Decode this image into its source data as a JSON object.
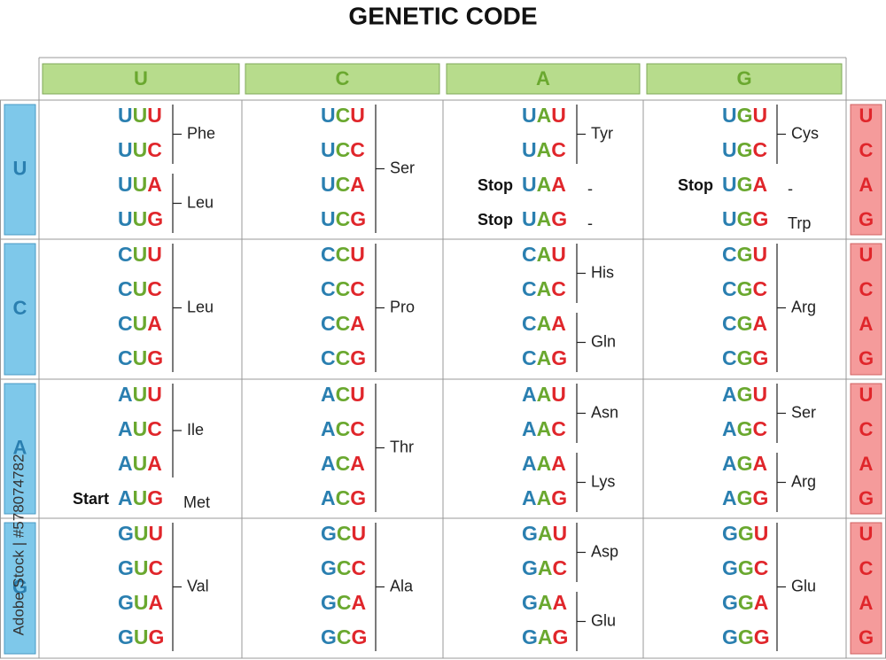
{
  "title": "GENETIC CODE",
  "header": {
    "columns": [
      "U",
      "C",
      "A",
      "G"
    ]
  },
  "watermark": "Adobe Stock | #578074782",
  "rows": [
    {
      "label": "U",
      "third": [
        "U",
        "C",
        "A",
        "G"
      ],
      "cells": [
        {
          "groups": [
            {
              "aa": "Phe",
              "codons": [
                "UUU",
                "UUC"
              ]
            },
            {
              "aa": "Leu",
              "codons": [
                "UUA",
                "UUG"
              ]
            }
          ]
        },
        {
          "groups": [
            {
              "aa": "Ser",
              "codons": [
                "UCU",
                "UCC",
                "UCA",
                "UCG"
              ]
            }
          ]
        },
        {
          "groups": [
            {
              "aa": "Tyr",
              "codons": [
                "UAU",
                "UAC"
              ]
            },
            {
              "aa": "-",
              "note": "Stop",
              "codons": [
                "UAA"
              ]
            },
            {
              "aa": "-",
              "note": "Stop",
              "codons": [
                "UAG"
              ]
            }
          ]
        },
        {
          "groups": [
            {
              "aa": "Cys",
              "codons": [
                "UGU",
                "UGC"
              ]
            },
            {
              "aa": "-",
              "note": "Stop",
              "codons": [
                "UGA"
              ]
            },
            {
              "aa": "Trp",
              "codons": [
                "UGG"
              ]
            }
          ]
        }
      ]
    },
    {
      "label": "C",
      "third": [
        "U",
        "C",
        "A",
        "G"
      ],
      "cells": [
        {
          "groups": [
            {
              "aa": "Leu",
              "codons": [
                "CUU",
                "CUC",
                "CUA",
                "CUG"
              ]
            }
          ]
        },
        {
          "groups": [
            {
              "aa": "Pro",
              "codons": [
                "CCU",
                "CCC",
                "CCA",
                "CCG"
              ]
            }
          ]
        },
        {
          "groups": [
            {
              "aa": "His",
              "codons": [
                "CAU",
                "CAC"
              ]
            },
            {
              "aa": "Gln",
              "codons": [
                "CAA",
                "CAG"
              ]
            }
          ]
        },
        {
          "groups": [
            {
              "aa": "Arg",
              "codons": [
                "CGU",
                "CGC",
                "CGA",
                "CGG"
              ]
            }
          ]
        }
      ]
    },
    {
      "label": "A",
      "third": [
        "U",
        "C",
        "A",
        "G"
      ],
      "cells": [
        {
          "groups": [
            {
              "aa": "Ile",
              "codons": [
                "AUU",
                "AUC",
                "AUA"
              ]
            },
            {
              "aa": "Met",
              "note": "Start",
              "codons": [
                "AUG"
              ]
            }
          ]
        },
        {
          "groups": [
            {
              "aa": "Thr",
              "codons": [
                "ACU",
                "ACC",
                "ACA",
                "ACG"
              ]
            }
          ]
        },
        {
          "groups": [
            {
              "aa": "Asn",
              "codons": [
                "AAU",
                "AAC"
              ]
            },
            {
              "aa": "Lys",
              "codons": [
                "AAA",
                "AAG"
              ]
            }
          ]
        },
        {
          "groups": [
            {
              "aa": "Ser",
              "codons": [
                "AGU",
                "AGC"
              ]
            },
            {
              "aa": "Arg",
              "codons": [
                "AGA",
                "AGG"
              ]
            }
          ]
        }
      ]
    },
    {
      "label": "G",
      "third": [
        "U",
        "C",
        "A",
        "G"
      ],
      "cells": [
        {
          "groups": [
            {
              "aa": "Val",
              "codons": [
                "GUU",
                "GUC",
                "GUA",
                "GUG"
              ]
            }
          ]
        },
        {
          "groups": [
            {
              "aa": "Ala",
              "codons": [
                "GCU",
                "GCC",
                "GCA",
                "GCG"
              ]
            }
          ]
        },
        {
          "groups": [
            {
              "aa": "Asp",
              "codons": [
                "GAU",
                "GAC"
              ]
            },
            {
              "aa": "Glu",
              "codons": [
                "GAA",
                "GAG"
              ]
            }
          ]
        },
        {
          "groups": [
            {
              "aa": "Glu",
              "codons": [
                "GGU",
                "GGC",
                "GGA",
                "GGG"
              ]
            }
          ]
        }
      ]
    }
  ]
}
